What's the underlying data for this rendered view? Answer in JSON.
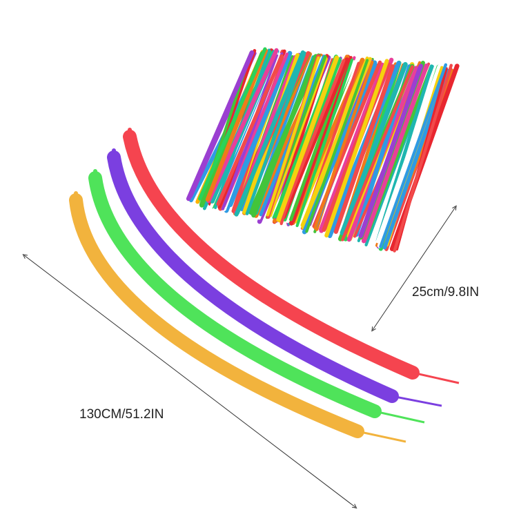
{
  "labels": {
    "bundle_size": "25cm/9.8IN",
    "balloon_length": "130CM/51.2IN"
  },
  "balloons": [
    {
      "name": "yellow",
      "color": "#f2b33d"
    },
    {
      "name": "green",
      "color": "#4fe35a"
    },
    {
      "name": "purple",
      "color": "#7b3fe0"
    },
    {
      "name": "red",
      "color": "#f5444f"
    }
  ],
  "bundle_colors": [
    "#e8262f",
    "#f5d10f",
    "#2f9be3",
    "#43c43a",
    "#f07a1a",
    "#9b3fd1",
    "#e83f9a",
    "#1fb6b0",
    "#ffffff",
    "#f24a4a",
    "#ffb400",
    "#2ad35a"
  ]
}
